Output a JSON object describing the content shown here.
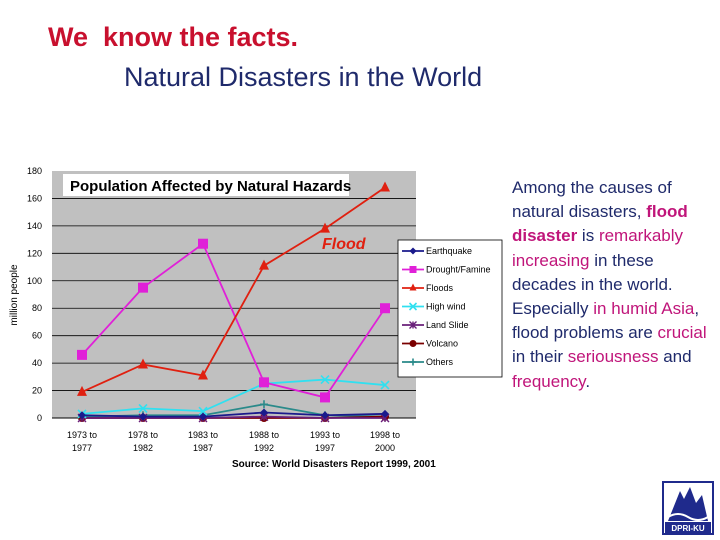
{
  "slide": {
    "title_line1": "We  know the facts.",
    "title_line2": "Natural Disasters in the World"
  },
  "side_text": {
    "s1": "Among the causes of natural disasters, ",
    "s2": "flood disaster",
    "s3": " is ",
    "s4": "remarkably increasing",
    "s5": " in these decades in the world.",
    "s6": " Especially ",
    "s7": "in humid Asia",
    "s8": ", flood problems are ",
    "s9": "crucial",
    "s10": " in their ",
    "s11": "seriousness",
    "s12": " and ",
    "s13": "frequency",
    "s14": "."
  },
  "logo": {
    "text": "DPRI-KU"
  },
  "chart_data": {
    "type": "line",
    "title": "Population Affected by Natural Hazards",
    "annotation": "Flood",
    "ylabel": "million people",
    "xlabel": "",
    "source": "Source: World Disasters Report 1999, 2001",
    "ylim": [
      0,
      180
    ],
    "yticks": [
      0,
      20,
      40,
      60,
      80,
      100,
      120,
      140,
      160,
      180
    ],
    "categories": [
      "1973 to\n1977",
      "1978 to\n1982",
      "1983 to\n1987",
      "1988 to\n1992",
      "1993 to\n1997",
      "1998 to\n2000"
    ],
    "grid": true,
    "legend_position": "right",
    "series": [
      {
        "name": "Earthquake",
        "color": "#1a1a8c",
        "marker": "diamond",
        "values": [
          2,
          1,
          1,
          4,
          2,
          3
        ]
      },
      {
        "name": "Drought/Famine",
        "color": "#e020d8",
        "marker": "square",
        "values": [
          46,
          95,
          127,
          26,
          15,
          80
        ]
      },
      {
        "name": "Floods",
        "color": "#e02010",
        "marker": "triangle",
        "values": [
          19,
          39,
          31,
          111,
          138,
          168
        ]
      },
      {
        "name": "High wind",
        "color": "#30e0f0",
        "marker": "x",
        "values": [
          3,
          7,
          5,
          25,
          28,
          24
        ]
      },
      {
        "name": "Land Slide",
        "color": "#6a1f7a",
        "marker": "star",
        "values": [
          0,
          0,
          0,
          1,
          0,
          0
        ]
      },
      {
        "name": "Volcano",
        "color": "#7a0000",
        "marker": "circle",
        "values": [
          0,
          0,
          0,
          0,
          0,
          1
        ]
      },
      {
        "name": "Others",
        "color": "#2a8a8a",
        "marker": "plus",
        "values": [
          1,
          2,
          2,
          10,
          2,
          1
        ]
      }
    ]
  }
}
